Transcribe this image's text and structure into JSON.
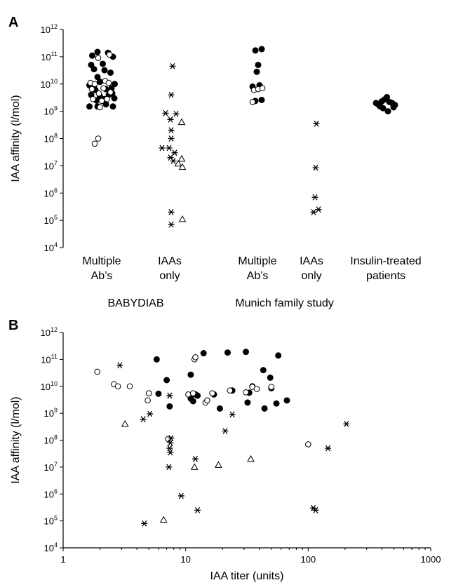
{
  "chart_data": [
    {
      "panel_label": "A",
      "type": "scatter",
      "y_scale": "log",
      "ylim": [
        10000,
        1000000000000
      ],
      "ylabel": "IAA affinity (l/mol)",
      "categories": [
        {
          "line1": "Multiple",
          "line2": "Ab’s"
        },
        {
          "line1": "IAAs",
          "line2": "only"
        },
        {
          "line1": "Multiple",
          "line2": "Ab’s"
        },
        {
          "line1": "IAAs",
          "line2": "only"
        },
        {
          "line1": "Insulin-treated",
          "line2": "patients"
        }
      ],
      "groups": [
        {
          "label": "BABYDIAB",
          "categories": [
            0,
            1
          ]
        },
        {
          "label": "Munich family study",
          "categories": [
            2,
            3
          ]
        }
      ],
      "series": [
        {
          "marker": "filled-circle",
          "points": [
            {
              "cat": 0,
              "dx": -0.27,
              "y": 110000000000.0
            },
            {
              "cat": 0,
              "dx": -0.12,
              "y": 150000000000.0
            },
            {
              "cat": 0,
              "dx": 0.18,
              "y": 140000000000.0
            },
            {
              "cat": 0,
              "dx": 0.32,
              "y": 100000000000.0
            },
            {
              "cat": 0,
              "dx": -0.3,
              "y": 50000000000.0
            },
            {
              "cat": 0,
              "dx": 0.03,
              "y": 55000000000.0
            },
            {
              "cat": 0,
              "dx": -0.22,
              "y": 35000000000.0
            },
            {
              "cat": 0,
              "dx": 0.08,
              "y": 32000000000.0
            },
            {
              "cat": 0,
              "dx": 0.25,
              "y": 26000000000.0
            },
            {
              "cat": 0,
              "dx": -0.12,
              "y": 18000000000.0
            },
            {
              "cat": 0,
              "dx": -0.05,
              "y": 12000000000.0
            },
            {
              "cat": 0,
              "dx": -0.35,
              "y": 9000000000.0
            },
            {
              "cat": 0,
              "dx": 0.37,
              "y": 10000000000.0
            },
            {
              "cat": 0,
              "dx": 0.28,
              "y": 7000000000.0
            },
            {
              "cat": 0,
              "dx": -0.18,
              "y": 6000000000.0
            },
            {
              "cat": 0,
              "dx": 0.12,
              "y": 6500000000.0
            },
            {
              "cat": 0,
              "dx": -0.3,
              "y": 4000000000.0
            },
            {
              "cat": 0,
              "dx": -0.05,
              "y": 3500000000.0
            },
            {
              "cat": 0,
              "dx": 0.2,
              "y": 4000000000.0
            },
            {
              "cat": 0,
              "dx": 0.36,
              "y": 3000000000.0
            },
            {
              "cat": 0,
              "dx": -0.15,
              "y": 2500000000.0
            },
            {
              "cat": 0,
              "dx": 0.08,
              "y": 2800000000.0
            },
            {
              "cat": 0,
              "dx": -0.35,
              "y": 1500000000.0
            },
            {
              "cat": 0,
              "dx": -0.12,
              "y": 1500000000.0
            },
            {
              "cat": 0,
              "dx": 0.12,
              "y": 1800000000.0
            },
            {
              "cat": 0,
              "dx": 0.32,
              "y": 1500000000.0
            },
            {
              "cat": 0,
              "dx": -0.22,
              "y": 8000000000.0
            },
            {
              "cat": 0,
              "dx": 0.3,
              "y": 4500000000.0
            },
            {
              "cat": 2,
              "dx": 0.12,
              "y": 190000000000.0
            },
            {
              "cat": 2,
              "dx": -0.06,
              "y": 170000000000.0
            },
            {
              "cat": 2,
              "dx": 0.02,
              "y": 50000000000.0
            },
            {
              "cat": 2,
              "dx": -0.02,
              "y": 28000000000.0
            },
            {
              "cat": 2,
              "dx": -0.14,
              "y": 8000000000.0
            },
            {
              "cat": 2,
              "dx": 0.06,
              "y": 9000000000.0
            },
            {
              "cat": 2,
              "dx": -0.06,
              "y": 2400000000.0
            },
            {
              "cat": 2,
              "dx": 0.12,
              "y": 2600000000.0
            },
            {
              "cat": 4,
              "dx": -0.28,
              "y": 2000000000.0
            },
            {
              "cat": 4,
              "dx": -0.2,
              "y": 1700000000.0
            },
            {
              "cat": 4,
              "dx": -0.12,
              "y": 2300000000.0
            },
            {
              "cat": 4,
              "dx": -0.04,
              "y": 2700000000.0
            },
            {
              "cat": 4,
              "dx": 0.03,
              "y": 3300000000.0
            },
            {
              "cat": 4,
              "dx": 0.1,
              "y": 2200000000.0
            },
            {
              "cat": 4,
              "dx": 0.18,
              "y": 2000000000.0
            },
            {
              "cat": 4,
              "dx": 0.26,
              "y": 1700000000.0
            },
            {
              "cat": 4,
              "dx": -0.08,
              "y": 1300000000.0
            },
            {
              "cat": 4,
              "dx": 0.06,
              "y": 1000000000.0
            },
            {
              "cat": 4,
              "dx": -0.16,
              "y": 1500000000.0
            },
            {
              "cat": 4,
              "dx": 0.22,
              "y": 1400000000.0
            }
          ]
        },
        {
          "marker": "open-circle",
          "points": [
            {
              "cat": 0,
              "dx": -0.1,
              "y": 90000000000.0
            },
            {
              "cat": 0,
              "dx": 0.22,
              "y": 120000000000.0
            },
            {
              "cat": 0,
              "dx": -0.32,
              "y": 11000000000.0
            },
            {
              "cat": 0,
              "dx": -0.2,
              "y": 10000000000.0
            },
            {
              "cat": 0,
              "dx": 0.1,
              "y": 13000000000.0
            },
            {
              "cat": 0,
              "dx": 0.2,
              "y": 11000000000.0
            },
            {
              "cat": 0,
              "dx": -0.28,
              "y": 6500000000.0
            },
            {
              "cat": 0,
              "dx": 0.05,
              "y": 7000000000.0
            },
            {
              "cat": 0,
              "dx": -0.08,
              "y": 4500000000.0
            },
            {
              "cat": 0,
              "dx": 0.25,
              "y": 5000000000.0
            },
            {
              "cat": 0,
              "dx": -0.25,
              "y": 2800000000.0
            },
            {
              "cat": 0,
              "dx": 0,
              "y": 2400000000.0
            },
            {
              "cat": 0,
              "dx": 0.15,
              "y": 2800000000.0
            },
            {
              "cat": 0,
              "dx": -0.2,
              "y": 65000000.0
            },
            {
              "cat": 0,
              "dx": -0.1,
              "y": 100000000.0
            },
            {
              "cat": 0,
              "dx": -0.05,
              "y": 1400000000.0
            },
            {
              "cat": 2,
              "dx": -0.1,
              "y": 6000000000.0
            },
            {
              "cat": 2,
              "dx": 0.02,
              "y": 6500000000.0
            },
            {
              "cat": 2,
              "dx": 0.14,
              "y": 7000000000.0
            },
            {
              "cat": 2,
              "dx": -0.14,
              "y": 2200000000.0
            }
          ]
        },
        {
          "marker": "star",
          "points": [
            {
              "cat": 1,
              "dx": 0.08,
              "y": 45000000000.0
            },
            {
              "cat": 1,
              "dx": 0.04,
              "y": 4000000000.0
            },
            {
              "cat": 1,
              "dx": -0.12,
              "y": 850000000.0
            },
            {
              "cat": 1,
              "dx": 0.18,
              "y": 800000000.0
            },
            {
              "cat": 1,
              "dx": 0.02,
              "y": 500000000.0
            },
            {
              "cat": 1,
              "dx": 0.04,
              "y": 200000000.0
            },
            {
              "cat": 1,
              "dx": 0.04,
              "y": 100000000.0
            },
            {
              "cat": 1,
              "dx": -0.22,
              "y": 45000000.0
            },
            {
              "cat": 1,
              "dx": -0.02,
              "y": 45000000.0
            },
            {
              "cat": 1,
              "dx": 0.14,
              "y": 30000000.0
            },
            {
              "cat": 1,
              "dx": 0.02,
              "y": 20000000.0
            },
            {
              "cat": 1,
              "dx": 0.1,
              "y": 15000000.0
            },
            {
              "cat": 1,
              "dx": 0.04,
              "y": 200000.0
            },
            {
              "cat": 1,
              "dx": 0.04,
              "y": 70000.0
            },
            {
              "cat": 3,
              "dx": 0.14,
              "y": 350000000.0
            },
            {
              "cat": 3,
              "dx": 0.12,
              "y": 8500000.0
            },
            {
              "cat": 3,
              "dx": 0.1,
              "y": 700000.0
            },
            {
              "cat": 3,
              "dx": 0.06,
              "y": 200000.0
            },
            {
              "cat": 3,
              "dx": 0.2,
              "y": 250000.0
            }
          ]
        },
        {
          "marker": "triangle",
          "points": [
            {
              "cat": 1,
              "dx": 0.34,
              "y": 400000000.0
            },
            {
              "cat": 1,
              "dx": 0.34,
              "y": 18000000.0
            },
            {
              "cat": 1,
              "dx": 0.24,
              "y": 12000000.0
            },
            {
              "cat": 1,
              "dx": 0.36,
              "y": 9000000.0
            },
            {
              "cat": 1,
              "dx": 0.36,
              "y": 110000.0
            }
          ]
        }
      ]
    },
    {
      "panel_label": "B",
      "type": "scatter",
      "x_scale": "log",
      "y_scale": "log",
      "xlim": [
        1,
        1000
      ],
      "ylim": [
        10000,
        1000000000000
      ],
      "x_tick_labels": [
        "1",
        "10",
        "100",
        "1000"
      ],
      "xlabel": "IAA titer (units)",
      "ylabel": "IAA affinity (l/mol)",
      "series": [
        {
          "marker": "filled-circle",
          "points": [
            [
              5.8,
              100000000000.0
            ],
            [
              7,
              17000000000.0
            ],
            [
              11,
              27000000000.0
            ],
            [
              14,
              170000000000.0
            ],
            [
              22,
              180000000000.0
            ],
            [
              31,
              190000000000.0
            ],
            [
              57,
              140000000000.0
            ],
            [
              43,
              40000000000.0
            ],
            [
              49,
              21000000000.0
            ],
            [
              6,
              5300000000.0
            ],
            [
              7.4,
              1800000000.0
            ],
            [
              11,
              3500000000.0
            ],
            [
              11.5,
              2800000000.0
            ],
            [
              12.5,
              4500000000.0
            ],
            [
              17,
              5000000000.0
            ],
            [
              19,
              1500000000.0
            ],
            [
              24,
              7000000000.0
            ],
            [
              33,
              5800000000.0
            ],
            [
              32,
              2500000000.0
            ],
            [
              35,
              10000000000.0
            ],
            [
              44,
              1500000000.0
            ],
            [
              50,
              8500000000.0
            ],
            [
              55,
              2300000000.0
            ],
            [
              67,
              3000000000.0
            ],
            [
              12,
              5000000000.0
            ]
          ]
        },
        {
          "marker": "open-circle",
          "points": [
            [
              1.9,
              35000000000.0
            ],
            [
              2.6,
              12000000000.0
            ],
            [
              2.8,
              10000000000.0
            ],
            [
              3.5,
              10000000000.0
            ],
            [
              5,
              5500000000.0
            ],
            [
              4.9,
              3000000000.0
            ],
            [
              10.5,
              5000000000.0
            ],
            [
              11.5,
              5500000000.0
            ],
            [
              11.8,
              100000000000.0
            ],
            [
              12,
              120000000000.0
            ],
            [
              14.5,
              2500000000.0
            ],
            [
              15,
              3000000000.0
            ],
            [
              16.5,
              5500000000.0
            ],
            [
              23,
              7000000000.0
            ],
            [
              31,
              6000000000.0
            ],
            [
              35,
              9500000000.0
            ],
            [
              38,
              8000000000.0
            ],
            [
              50,
              9500000000.0
            ],
            [
              7.2,
              110000000.0
            ],
            [
              100,
              70000000.0
            ]
          ]
        },
        {
          "marker": "star",
          "points": [
            [
              2.9,
              60000000000.0
            ],
            [
              7.4,
              4500000000.0
            ],
            [
              5.1,
              950000000.0
            ],
            [
              4.5,
              600000000.0
            ],
            [
              7.6,
              120000000.0
            ],
            [
              7.5,
              80000000.0
            ],
            [
              7.4,
              50000000.0
            ],
            [
              7.5,
              35000000.0
            ],
            [
              7.3,
              10000000.0
            ],
            [
              12,
              20000000.0
            ],
            [
              21,
              220000000.0
            ],
            [
              24,
              900000000.0
            ],
            [
              9.2,
              850000.0
            ],
            [
              12.5,
              250000.0
            ],
            [
              4.6,
              80000.0
            ],
            [
              110,
              300000.0
            ],
            [
              115,
              250000.0
            ],
            [
              145,
              50000000.0
            ],
            [
              205,
              400000000.0
            ]
          ]
        },
        {
          "marker": "triangle",
          "points": [
            [
              3.2,
              400000000.0
            ],
            [
              11.8,
              10000000.0
            ],
            [
              18.5,
              12000000.0
            ],
            [
              34,
              20000000.0
            ],
            [
              6.6,
              110000.0
            ]
          ]
        }
      ]
    }
  ]
}
